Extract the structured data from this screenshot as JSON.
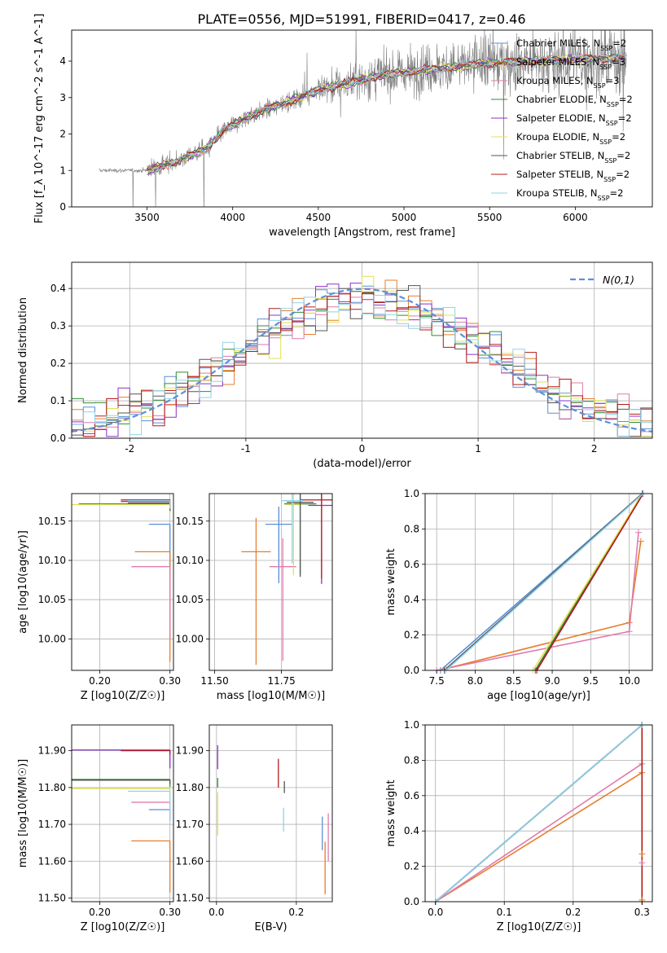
{
  "figure_title": "PLATE=0556, MJD=51991, FIBERID=0417, z=0.46",
  "colors": {
    "Chabrier MILES": "#5b8fd8",
    "Salpeter MILES": "#e67e2e",
    "Kroupa MILES": "#e07aac",
    "Chabrier ELODIE": "#2f8f2f",
    "Salpeter ELODIE": "#8e32c8",
    "Kroupa ELODIE": "#e2e05a",
    "Chabrier STELIB": "#555555",
    "Salpeter STELIB": "#b31b1b",
    "Kroupa STELIB": "#8fd3e8",
    "normal": "#5b8fd8",
    "data": "#808080"
  },
  "chart_data": [
    {
      "id": "spectrum",
      "type": "line",
      "title": "PLATE=0556, MJD=51991, FIBERID=0417, z=0.46",
      "xlabel": "wavelength [Angstrom, rest frame]",
      "ylabel": "Flux [f_λ 10^-17 erg cm^-2 s^-1 A^-1]",
      "xlim": [
        3060,
        6450
      ],
      "ylim": [
        0,
        4.85
      ],
      "xticks": [
        3500,
        4000,
        4500,
        5000,
        5500,
        6000
      ],
      "yticks": [
        0,
        1,
        2,
        3,
        4
      ],
      "grid": false,
      "legend_position": "top-right",
      "legend": [
        "Chabrier MILES, N_SSP=2",
        "Salpeter MILES, N_SSP=3",
        "Kroupa MILES, N_SSP=3",
        "Chabrier ELODIE, N_SSP=2",
        "Salpeter ELODIE, N_SSP=2",
        "Kroupa ELODIE, N_SSP=2",
        "Chabrier STELIB, N_SSP=2",
        "Salpeter STELIB, N_SSP=2",
        "Kroupa STELIB, N_SSP=2"
      ],
      "data_series": {
        "x_range": [
          3220,
          6300
        ],
        "continuum": [
          [
            3220,
            1.0
          ],
          [
            3500,
            1.0
          ],
          [
            3700,
            1.3
          ],
          [
            3850,
            1.6
          ],
          [
            3950,
            2.1
          ],
          [
            4100,
            2.5
          ],
          [
            4300,
            2.85
          ],
          [
            4500,
            3.2
          ],
          [
            4800,
            3.55
          ],
          [
            5100,
            3.75
          ],
          [
            5500,
            3.95
          ],
          [
            6000,
            4.05
          ],
          [
            6300,
            4.1
          ]
        ]
      },
      "model_range": [
        3500,
        6300
      ]
    },
    {
      "id": "residual_hist",
      "type": "line",
      "xlabel": "(data-model)/error",
      "ylabel": "Normed distribution",
      "xlim": [
        -2.5,
        2.5
      ],
      "ylim": [
        0,
        0.47
      ],
      "xticks": [
        -2,
        -1,
        0,
        1,
        2
      ],
      "yticks": [
        0.0,
        0.1,
        0.2,
        0.3,
        0.4
      ],
      "grid": true,
      "legend_position": "top-right",
      "legend": [
        "N(0,1)"
      ],
      "bin_width": 0.1
    },
    {
      "id": "age_vs_Z",
      "type": "scatter",
      "xlabel": "Z [log10(Z/Z☉)]",
      "ylabel": "age [log10(age/yr)]",
      "xlim": [
        0.16,
        0.305
      ],
      "ylim": [
        9.96,
        10.185
      ],
      "xticks": [
        0.2,
        0.3
      ],
      "yticks": [
        10.0,
        10.05,
        10.1,
        10.15
      ],
      "grid": true,
      "points": [
        {
          "model": "Chabrier MILES",
          "x": 0.3,
          "y": 10.146,
          "xerr": 0.03,
          "yerr": 0.07
        },
        {
          "model": "Salpeter MILES",
          "x": 0.3,
          "y": 10.111,
          "xerr": 0.05,
          "yerr": 0.14
        },
        {
          "model": "Kroupa MILES",
          "x": 0.3,
          "y": 10.092,
          "xerr": 0.055,
          "yerr": 0.09
        },
        {
          "model": "Chabrier ELODIE",
          "x": 0.3,
          "y": 10.172,
          "xerr": 0.13,
          "yerr": 0.01
        },
        {
          "model": "Salpeter ELODIE",
          "x": 0.3,
          "y": 10.175,
          "xerr": 0.07,
          "yerr": 0.01
        },
        {
          "model": "Kroupa ELODIE",
          "x": 0.3,
          "y": 10.171,
          "xerr": 0.14,
          "yerr": 0.01
        },
        {
          "model": "Chabrier STELIB",
          "x": 0.3,
          "y": 10.173,
          "xerr": 0.06,
          "yerr": 0.01
        },
        {
          "model": "Salpeter STELIB",
          "x": 0.3,
          "y": 10.177,
          "xerr": 0.07,
          "yerr": 0.01
        },
        {
          "model": "Kroupa STELIB",
          "x": 0.3,
          "y": 10.176,
          "xerr": 0.06,
          "yerr": 0.01
        }
      ]
    },
    {
      "id": "age_vs_mass",
      "type": "scatter",
      "xlabel": "mass [log10(M/M☉)]",
      "ylabel": "",
      "xlim": [
        11.48,
        11.94
      ],
      "ylim": [
        9.96,
        10.185
      ],
      "xticks": [
        11.5,
        11.75
      ],
      "yticks": [
        10.0,
        10.05,
        10.1,
        10.15
      ],
      "grid": true,
      "points": [
        {
          "model": "Chabrier MILES",
          "x": 11.74,
          "y": 10.146,
          "xerr": 0.05,
          "yerr": 0.075
        },
        {
          "model": "Salpeter MILES",
          "x": 11.655,
          "y": 10.111,
          "xerr": 0.055,
          "yerr": 0.144
        },
        {
          "model": "Kroupa MILES",
          "x": 11.755,
          "y": 10.092,
          "xerr": 0.05,
          "yerr": 0.12
        },
        {
          "model": "Chabrier ELODIE",
          "x": 11.82,
          "y": 10.172,
          "xerr": 0.06,
          "yerr": 0.09
        },
        {
          "model": "Salpeter ELODIE",
          "x": 11.9,
          "y": 10.17,
          "xerr": 0.05,
          "yerr": 0.1
        },
        {
          "model": "Kroupa ELODIE",
          "x": 11.795,
          "y": 10.171,
          "xerr": 0.03,
          "yerr": 0.09
        },
        {
          "model": "Chabrier STELIB",
          "x": 11.82,
          "y": 10.174,
          "xerr": 0.05,
          "yerr": 0.095
        },
        {
          "model": "Salpeter STELIB",
          "x": 11.9,
          "y": 10.177,
          "xerr": 0.08,
          "yerr": 0.1
        },
        {
          "model": "Kroupa STELIB",
          "x": 11.79,
          "y": 10.176,
          "xerr": 0.04,
          "yerr": 0.08
        }
      ]
    },
    {
      "id": "weight_vs_age",
      "type": "line",
      "xlabel": "age [log10(age/yr)]",
      "ylabel": "mass weight",
      "xlim": [
        7.35,
        10.3
      ],
      "ylim": [
        0,
        1.0
      ],
      "xticks": [
        7.5,
        8.0,
        8.5,
        9.0,
        9.5,
        10.0
      ],
      "yticks": [
        0.0,
        0.2,
        0.4,
        0.6,
        0.8,
        1.0
      ],
      "grid": true,
      "series": [
        {
          "model": "Chabrier MILES",
          "x": [
            7.55,
            10.17
          ],
          "y": [
            0.0,
            1.0
          ]
        },
        {
          "model": "Salpeter MILES",
          "x": [
            7.62,
            10.0,
            10.15
          ],
          "y": [
            0.01,
            0.27,
            0.73
          ]
        },
        {
          "model": "Kroupa MILES",
          "x": [
            7.5,
            10.0,
            10.12
          ],
          "y": [
            0.0,
            0.22,
            0.78
          ]
        },
        {
          "model": "Chabrier ELODIE",
          "x": [
            8.78,
            10.17
          ],
          "y": [
            0.0,
            1.0
          ]
        },
        {
          "model": "Salpeter ELODIE",
          "x": [
            8.8,
            10.18
          ],
          "y": [
            0.0,
            1.0
          ]
        },
        {
          "model": "Kroupa ELODIE",
          "x": [
            8.75,
            10.17
          ],
          "y": [
            0.0,
            1.0
          ]
        },
        {
          "model": "Chabrier STELIB",
          "x": [
            7.6,
            10.17
          ],
          "y": [
            0.0,
            1.0
          ]
        },
        {
          "model": "Salpeter STELIB",
          "x": [
            8.8,
            10.18
          ],
          "y": [
            0.0,
            1.0
          ]
        },
        {
          "model": "Kroupa STELIB",
          "x": [
            7.62,
            10.18
          ],
          "y": [
            0.0,
            1.0
          ]
        }
      ]
    },
    {
      "id": "mass_vs_Z",
      "type": "scatter",
      "xlabel": "Z [log10(Z/Z☉)]",
      "ylabel": "mass [log10(M/M☉)]",
      "xlim": [
        0.16,
        0.305
      ],
      "ylim": [
        11.49,
        11.97
      ],
      "xticks": [
        0.2,
        0.3
      ],
      "yticks": [
        11.5,
        11.6,
        11.7,
        11.8,
        11.9
      ],
      "grid": true,
      "points": [
        {
          "model": "Chabrier MILES",
          "x": 0.3,
          "y": 11.74,
          "xerr": 0.03,
          "yerr": 0.03
        },
        {
          "model": "Salpeter MILES",
          "x": 0.3,
          "y": 11.655,
          "xerr": 0.055,
          "yerr": 0.14
        },
        {
          "model": "Kroupa MILES",
          "x": 0.3,
          "y": 11.76,
          "xerr": 0.055,
          "yerr": 0.04
        },
        {
          "model": "Chabrier ELODIE",
          "x": 0.3,
          "y": 11.822,
          "xerr": 0.14,
          "yerr": 0.02
        },
        {
          "model": "Salpeter ELODIE",
          "x": 0.3,
          "y": 11.902,
          "xerr": 0.14,
          "yerr": 0.05
        },
        {
          "model": "Kroupa ELODIE",
          "x": 0.3,
          "y": 11.797,
          "xerr": 0.14,
          "yerr": 0.02
        },
        {
          "model": "Chabrier STELIB",
          "x": 0.3,
          "y": 11.82,
          "xerr": 0.14,
          "yerr": 0.01
        },
        {
          "model": "Salpeter STELIB",
          "x": 0.3,
          "y": 11.9,
          "xerr": 0.07,
          "yerr": 0.01
        },
        {
          "model": "Kroupa STELIB",
          "x": 0.3,
          "y": 11.79,
          "xerr": 0.06,
          "yerr": 0.08
        }
      ]
    },
    {
      "id": "mass_vs_ebv",
      "type": "scatter",
      "xlabel": "E(B-V)",
      "ylabel": "",
      "xlim": [
        -0.018,
        0.29
      ],
      "ylim": [
        11.49,
        11.97
      ],
      "xticks": [
        0.0,
        0.2
      ],
      "yticks": [
        11.5,
        11.6,
        11.7,
        11.8,
        11.9
      ],
      "grid": true,
      "points": [
        {
          "model": "Chabrier MILES",
          "x": 0.265,
          "y": 11.7,
          "yerr": 0.07
        },
        {
          "model": "Salpeter MILES",
          "x": 0.272,
          "y": 11.62,
          "yerr": 0.11
        },
        {
          "model": "Kroupa MILES",
          "x": 0.28,
          "y": 11.7,
          "yerr": 0.1
        },
        {
          "model": "Chabrier ELODIE",
          "x": 0.003,
          "y": 11.82,
          "yerr": 0.02
        },
        {
          "model": "Salpeter ELODIE",
          "x": 0.003,
          "y": 11.9,
          "yerr": 0.05
        },
        {
          "model": "Kroupa ELODIE",
          "x": 0.003,
          "y": 11.76,
          "yerr": 0.09
        },
        {
          "model": "Chabrier STELIB",
          "x": 0.17,
          "y": 11.81,
          "yerr": 0.025
        },
        {
          "model": "Salpeter STELIB",
          "x": 0.155,
          "y": 11.86,
          "yerr": 0.06
        },
        {
          "model": "Kroupa STELIB",
          "x": 0.168,
          "y": 11.73,
          "yerr": 0.05
        }
      ]
    },
    {
      "id": "weight_vs_Z",
      "type": "line",
      "xlabel": "Z [log10(Z/Z☉)]",
      "ylabel": "mass weight",
      "xlim": [
        -0.015,
        0.315
      ],
      "ylim": [
        0,
        1.0
      ],
      "xticks": [
        0.0,
        0.1,
        0.2,
        0.3
      ],
      "yticks": [
        0.0,
        0.2,
        0.4,
        0.6,
        0.8,
        1.0
      ],
      "grid": true,
      "series": [
        {
          "model": "Chabrier MILES",
          "x": [
            0.0,
            0.3
          ],
          "y": [
            0.0,
            1.0
          ]
        },
        {
          "model": "Salpeter MILES",
          "x": [
            0.0,
            0.3
          ],
          "y": [
            0.0,
            0.73
          ]
        },
        {
          "model": "Kroupa MILES",
          "x": [
            0.0,
            0.3
          ],
          "y": [
            0.0,
            0.78
          ]
        },
        {
          "model": "Chabrier ELODIE",
          "x": [
            0.0,
            0.3
          ],
          "y": [
            0.0,
            1.0
          ]
        },
        {
          "model": "Salpeter ELODIE",
          "x": [
            0.0,
            0.3
          ],
          "y": [
            0.0,
            1.0
          ]
        },
        {
          "model": "Kroupa ELODIE",
          "x": [
            0.3,
            0.3
          ],
          "y": [
            0.0,
            1.0
          ]
        },
        {
          "model": "Chabrier STELIB",
          "x": [
            0.0,
            0.3
          ],
          "y": [
            0.0,
            1.0
          ]
        },
        {
          "model": "Salpeter STELIB",
          "x": [
            0.3,
            0.3
          ],
          "y": [
            0.0,
            1.0
          ]
        },
        {
          "model": "Kroupa STELIB",
          "x": [
            0.0,
            0.3
          ],
          "y": [
            0.0,
            1.0
          ]
        }
      ],
      "markers": [
        {
          "model": "Salpeter MILES",
          "x": 0.3,
          "y": 0.27
        },
        {
          "model": "Kroupa MILES",
          "x": 0.3,
          "y": 0.22
        },
        {
          "model": "Salpeter MILES",
          "x": 0.3,
          "y": 0.01
        }
      ]
    }
  ]
}
